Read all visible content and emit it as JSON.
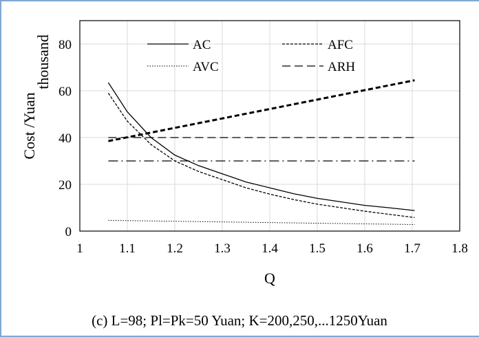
{
  "chart_data": {
    "type": "line",
    "xlabel": "Q",
    "ylabel": "Cost /Yuan",
    "ylabel_unit": "thousand",
    "caption": "(c) L=98; Pl=Pk=50 Yuan; K=200,250,...1250Yuan",
    "xlim": [
      1,
      1.8
    ],
    "ylim": [
      0,
      90
    ],
    "xticks": [
      "1",
      "1.1",
      "1.2",
      "1.3",
      "1.4",
      "1.5",
      "1.6",
      "1.7",
      "1.8"
    ],
    "xtick_values": [
      1,
      1.1,
      1.2,
      1.3,
      1.4,
      1.5,
      1.6,
      1.7,
      1.8
    ],
    "yticks": [
      "0",
      "20",
      "40",
      "60",
      "80"
    ],
    "ytick_values": [
      0,
      20,
      40,
      60,
      80
    ],
    "grid": true,
    "legend_position": "top",
    "series": [
      {
        "name": "AC",
        "style": "solid",
        "color": "#000000",
        "width": 1.3,
        "x": [
          1.06,
          1.1,
          1.15,
          1.2,
          1.25,
          1.3,
          1.35,
          1.4,
          1.45,
          1.5,
          1.55,
          1.6,
          1.65,
          1.705
        ],
        "y": [
          63.5,
          51,
          40,
          32.5,
          28,
          24.5,
          21,
          18.5,
          16,
          14,
          12.5,
          11,
          10,
          8.8
        ]
      },
      {
        "name": "AFC",
        "style": "dotted-short",
        "color": "#000000",
        "width": 1.3,
        "x": [
          1.06,
          1.1,
          1.15,
          1.2,
          1.25,
          1.3,
          1.35,
          1.4,
          1.45,
          1.5,
          1.55,
          1.6,
          1.65,
          1.705
        ],
        "y": [
          59,
          47,
          37,
          30,
          25.5,
          22,
          18.5,
          15.8,
          13.5,
          11.5,
          10,
          8.5,
          7.2,
          5.8
        ]
      },
      {
        "name": "AVC",
        "style": "dotted",
        "color": "#000000",
        "width": 1,
        "x": [
          1.06,
          1.705
        ],
        "y": [
          4.6,
          2.8
        ]
      },
      {
        "name": "ARH",
        "style": "dashed-bold",
        "color": "#000000",
        "width": 3,
        "x": [
          1.06,
          1.705
        ],
        "y": [
          38.5,
          64.5
        ]
      },
      {
        "style": "dashed",
        "color": "#000000",
        "width": 1.3,
        "x": [
          1.06,
          1.705
        ],
        "y": [
          40,
          40
        ]
      },
      {
        "style": "dash-dot",
        "color": "#000000",
        "width": 1.3,
        "x": [
          1.06,
          1.705
        ],
        "y": [
          30,
          30
        ]
      }
    ]
  }
}
